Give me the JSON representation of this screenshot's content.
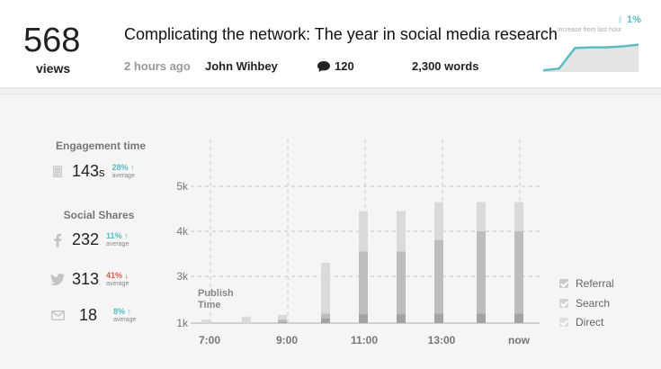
{
  "header": {
    "views_count": "568",
    "views_label": "views",
    "title": "Complicating the network: The year in social media research",
    "time_ago": "2 hours ago",
    "author": "John Wihbey",
    "comments": "120",
    "words": "2,300 words",
    "spark_pct": "1%",
    "spark_label": "increase from last hour",
    "spark_values": [
      0.05,
      0.1,
      0.7,
      0.72,
      0.72,
      0.75,
      0.8
    ],
    "spark_color": "#5bbcc4"
  },
  "metrics": {
    "engagement_title": "Engagement time",
    "engagement_value": "143",
    "engagement_unit": "s",
    "engagement_pct": "28% ↑",
    "engagement_avg": "average",
    "shares_title": "Social Shares",
    "facebook_value": "232",
    "facebook_pct": "11% ↑",
    "facebook_avg": "average",
    "twitter_value": "313",
    "twitter_pct": "41% ↓",
    "twitter_avg": "average",
    "email_value": "18",
    "email_pct": "8% ↑",
    "email_avg": "average",
    "up_color": "#5bbcc4",
    "down_color": "#e05a4e"
  },
  "legend": {
    "referral": "Referral",
    "search": "Search",
    "direct": "Direct"
  },
  "chart_data": {
    "type": "bar",
    "stacked": true,
    "x_tick_labels": [
      "7:00",
      "9:00",
      "11:00",
      "13:00",
      "now"
    ],
    "y_tick_labels": [
      "1k",
      "3k",
      "4k",
      "5k"
    ],
    "annotation": "Publish Time",
    "y_range_k": [
      1,
      5.7
    ],
    "grid": true,
    "bars": [
      {
        "direct": 0.0,
        "search": 0.0,
        "referral": 1.15
      },
      {
        "direct": 0.0,
        "search": 0.0,
        "referral": 1.28
      },
      {
        "direct": 1.05,
        "search": 1.15,
        "referral": 1.35
      },
      {
        "direct": 1.2,
        "search": 1.4,
        "referral": 3.3
      },
      {
        "direct": 1.38,
        "search": 3.55,
        "referral": 4.45
      },
      {
        "direct": 1.38,
        "search": 3.55,
        "referral": 4.45
      },
      {
        "direct": 1.4,
        "search": 3.8,
        "referral": 4.65
      },
      {
        "direct": 1.4,
        "search": 4.0,
        "referral": 4.65
      },
      {
        "direct": 1.4,
        "search": 4.0,
        "referral": 4.65
      }
    ],
    "colors": {
      "direct": "#a3a3a3",
      "search": "#bdbdbd",
      "referral": "#dadada"
    }
  }
}
